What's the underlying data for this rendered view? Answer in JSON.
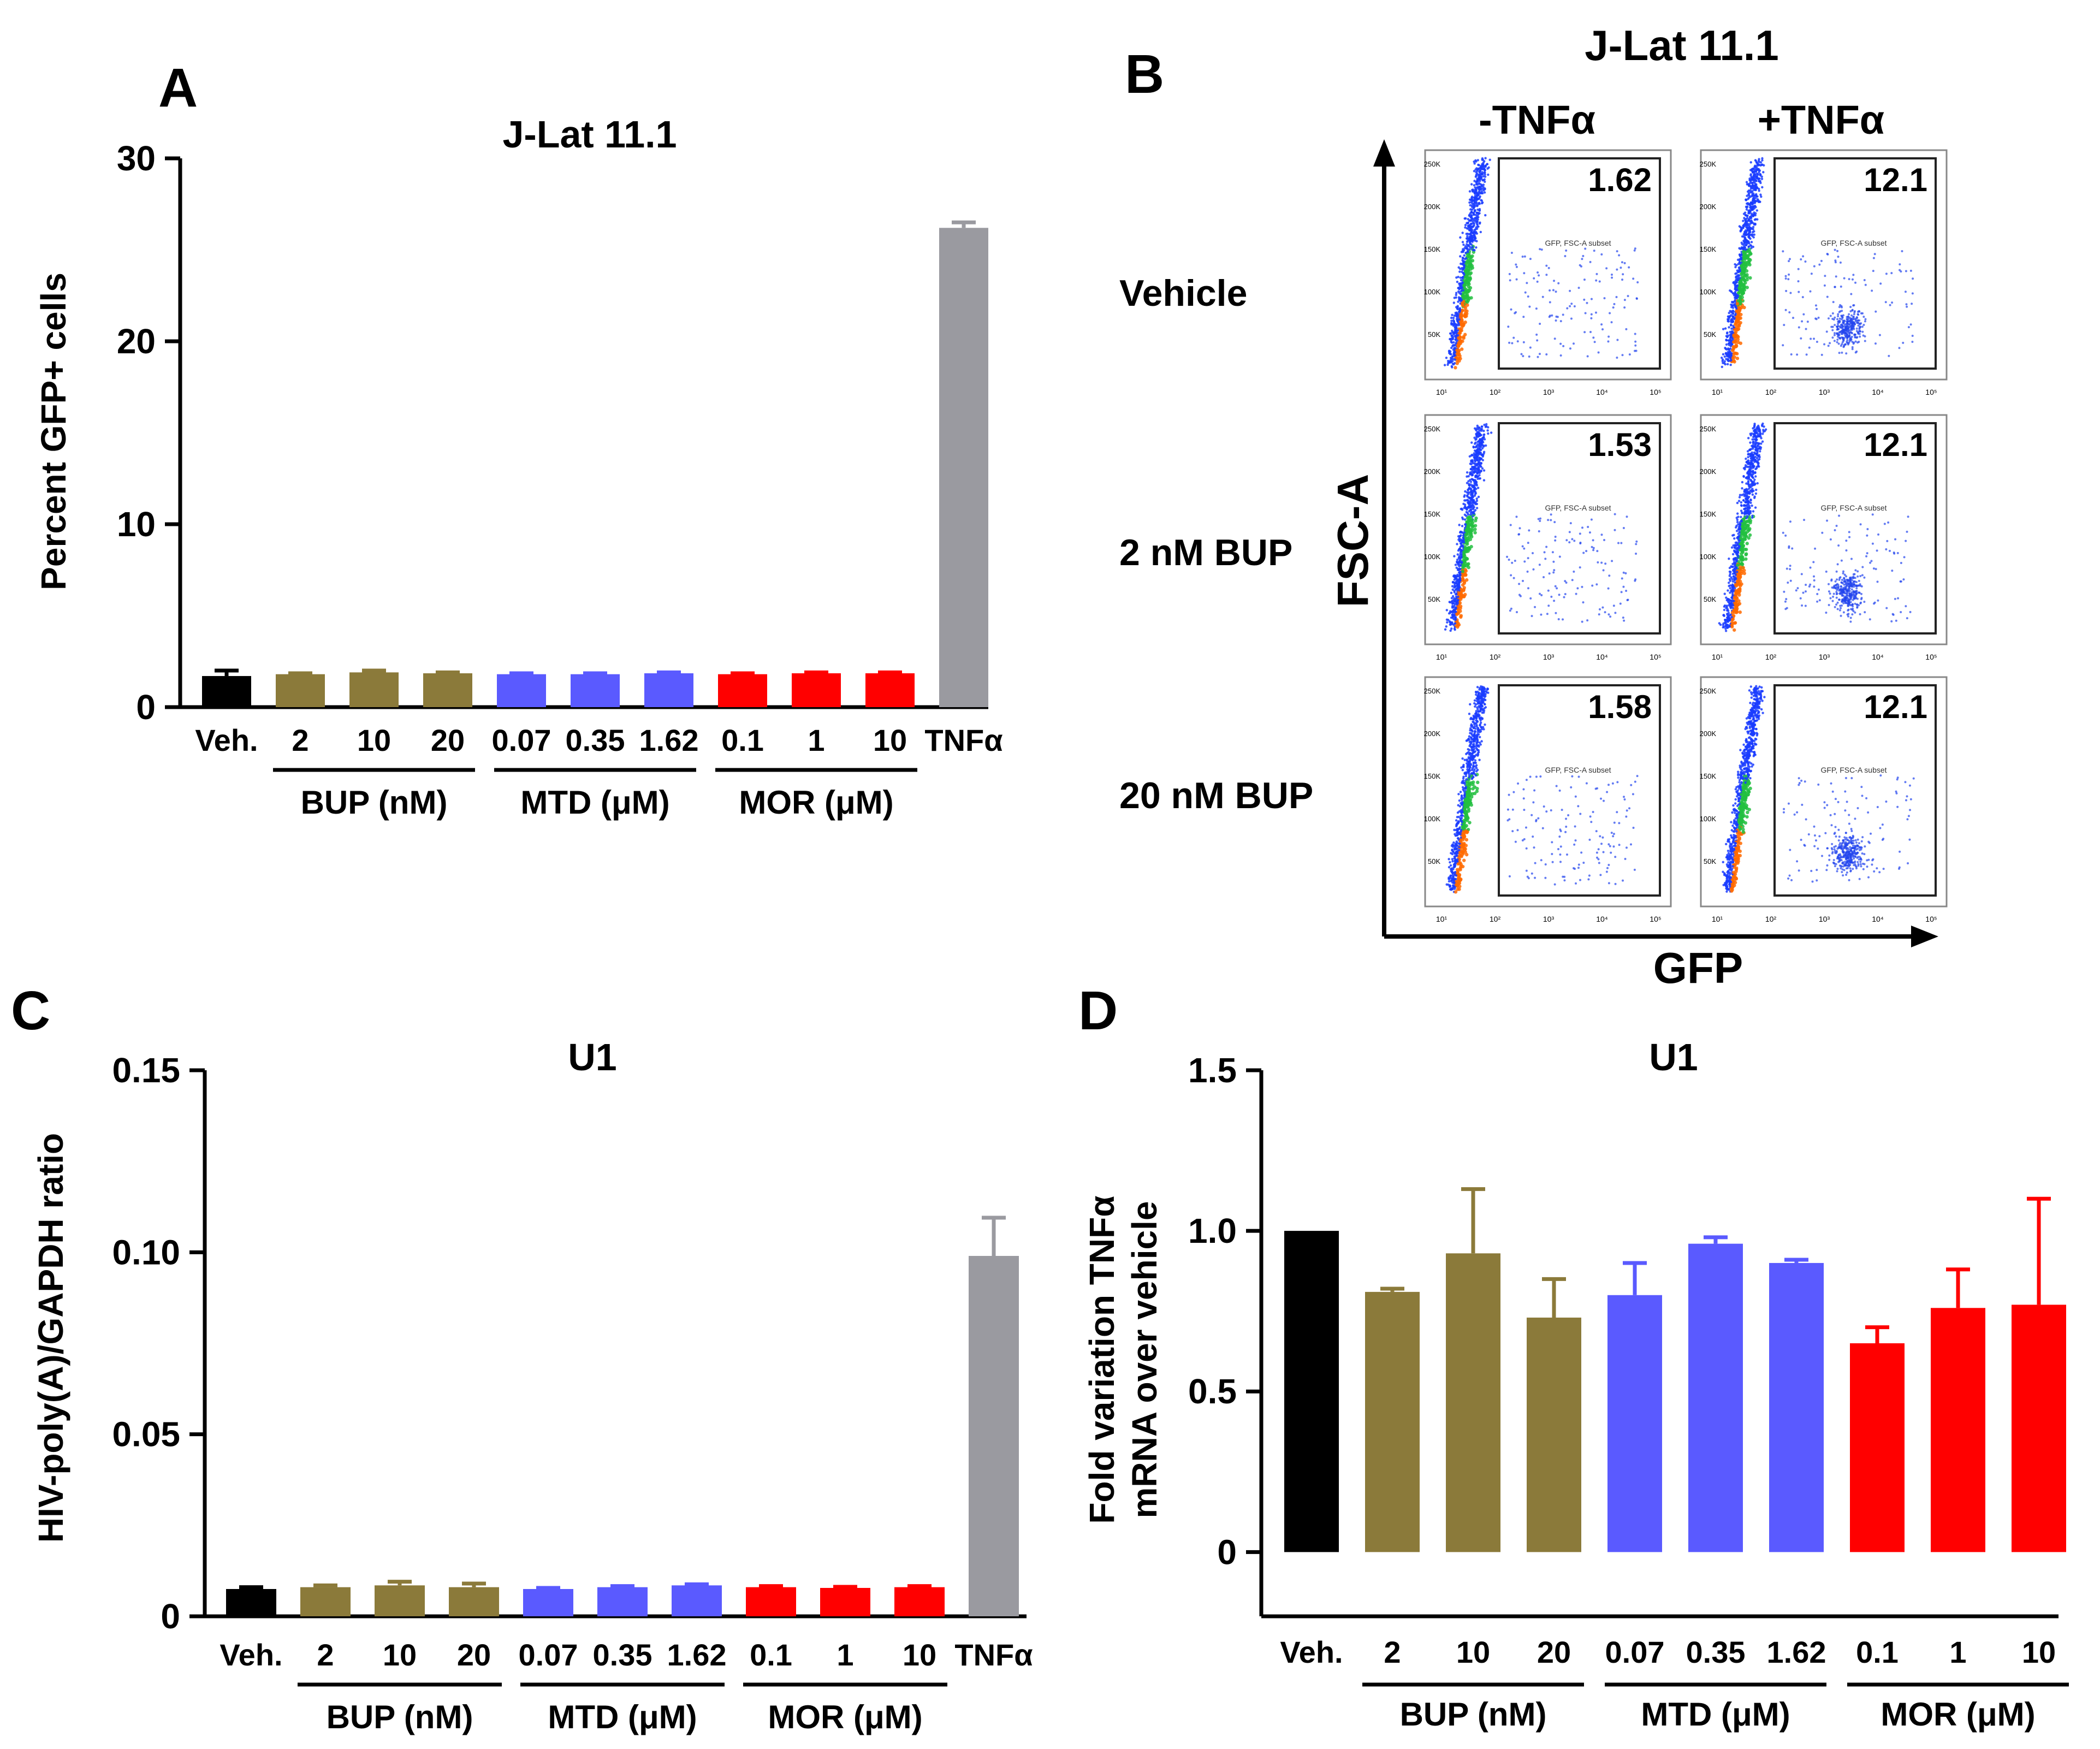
{
  "panels": {
    "A": "A",
    "B": "B",
    "C": "C",
    "D": "D"
  },
  "chart_data": [
    {
      "id": "A",
      "type": "bar",
      "title": "J-Lat 11.1",
      "ylabel": "Percent GFP+ cells",
      "xlabel": "",
      "ylim": [
        0,
        30
      ],
      "yticks": [
        0,
        10,
        20,
        30
      ],
      "ytick_labels": [
        "0",
        "10",
        "20",
        "30"
      ],
      "categories": [
        "Veh.",
        "2",
        "10",
        "20",
        "0.07",
        "0.35",
        "1.62",
        "0.1",
        "1",
        "10",
        "TNFα"
      ],
      "values": [
        1.7,
        1.8,
        1.9,
        1.85,
        1.8,
        1.8,
        1.85,
        1.8,
        1.85,
        1.85,
        26.2
      ],
      "errors": [
        0.3,
        0.05,
        0.1,
        0.05,
        0.05,
        0.05,
        0.05,
        0.05,
        0.05,
        0.05,
        0.3
      ],
      "colors": [
        "#000000",
        "#8B7A3A",
        "#8B7A3A",
        "#8B7A3A",
        "#5A5AFF",
        "#5A5AFF",
        "#5A5AFF",
        "#FF0000",
        "#FF0000",
        "#FF0000",
        "#9A9AA0"
      ],
      "groups": [
        {
          "label": "BUP (nM)",
          "start": 1,
          "end": 3
        },
        {
          "label": "MTD (μM)",
          "start": 4,
          "end": 6
        },
        {
          "label": "MOR (μM)",
          "start": 7,
          "end": 9
        }
      ]
    },
    {
      "id": "C",
      "type": "bar",
      "title": "U1",
      "ylabel": "HIV-poly(A)/GAPDH ratio",
      "xlabel": "",
      "ylim": [
        0,
        0.15
      ],
      "yticks": [
        0,
        0.05,
        0.1,
        0.15
      ],
      "ytick_labels": [
        "0",
        "0.05",
        "0.10",
        "0.15"
      ],
      "categories": [
        "Veh.",
        "2",
        "10",
        "20",
        "0.07",
        "0.35",
        "1.62",
        "0.1",
        "1",
        "10",
        "TNFα"
      ],
      "values": [
        0.0075,
        0.008,
        0.0085,
        0.008,
        0.0075,
        0.008,
        0.0085,
        0.008,
        0.0078,
        0.008,
        0.099
      ],
      "errors": [
        0.0005,
        0.0005,
        0.001,
        0.001,
        0.0003,
        0.0003,
        0.0003,
        0.0003,
        0.0003,
        0.0003,
        0.0105
      ],
      "colors": [
        "#000000",
        "#8B7A3A",
        "#8B7A3A",
        "#8B7A3A",
        "#5A5AFF",
        "#5A5AFF",
        "#5A5AFF",
        "#FF0000",
        "#FF0000",
        "#FF0000",
        "#9A9AA0"
      ],
      "groups": [
        {
          "label": "BUP (nM)",
          "start": 1,
          "end": 3
        },
        {
          "label": "MTD (μM)",
          "start": 4,
          "end": 6
        },
        {
          "label": "MOR (μM)",
          "start": 7,
          "end": 9
        }
      ]
    },
    {
      "id": "D",
      "type": "bar",
      "title": "U1",
      "ylabel": [
        "Fold variation TNFα",
        "mRNA over vehicle"
      ],
      "xlabel": "",
      "ylim": [
        -0.2,
        1.5
      ],
      "yticks": [
        0,
        0.5,
        1.0,
        1.5
      ],
      "ytick_labels": [
        "0",
        "0.5",
        "1.0",
        "1.5"
      ],
      "categories": [
        "Veh.",
        "2",
        "10",
        "20",
        "0.07",
        "0.35",
        "1.62",
        "0.1",
        "1",
        "10"
      ],
      "values": [
        1.0,
        0.81,
        0.93,
        0.73,
        0.8,
        0.96,
        0.9,
        0.65,
        0.76,
        0.77
      ],
      "errors": [
        0.0,
        0.01,
        0.2,
        0.12,
        0.1,
        0.02,
        0.01,
        0.05,
        0.12,
        0.33
      ],
      "colors": [
        "#000000",
        "#8B7A3A",
        "#8B7A3A",
        "#8B7A3A",
        "#5A5AFF",
        "#5A5AFF",
        "#5A5AFF",
        "#FF0000",
        "#FF0000",
        "#FF0000"
      ],
      "groups": [
        {
          "label": "BUP (nM)",
          "start": 1,
          "end": 3
        },
        {
          "label": "MTD (μM)",
          "start": 4,
          "end": 6
        },
        {
          "label": "MOR (μM)",
          "start": 7,
          "end": 9
        }
      ]
    },
    {
      "id": "B",
      "type": "scatter",
      "title": "J-Lat 11.1",
      "xlabel": "GFP",
      "ylabel": "FSC-A",
      "columns": [
        "-TNFα",
        "+TNFα"
      ],
      "rows": [
        "Vehicle",
        "2 nM BUP",
        "20 nM BUP"
      ],
      "gate_label": "GFP, FSC-A subset",
      "gate_values": [
        [
          "1.62",
          "12.1"
        ],
        [
          "1.53",
          "12.1"
        ],
        [
          "1.58",
          "12.1"
        ]
      ],
      "y_tick_labels": [
        "250K",
        "200K",
        "150K",
        "100K",
        "50K"
      ],
      "x_tick_labels": [
        "10¹",
        "10²",
        "10³",
        "10⁴",
        "10⁵"
      ]
    }
  ]
}
